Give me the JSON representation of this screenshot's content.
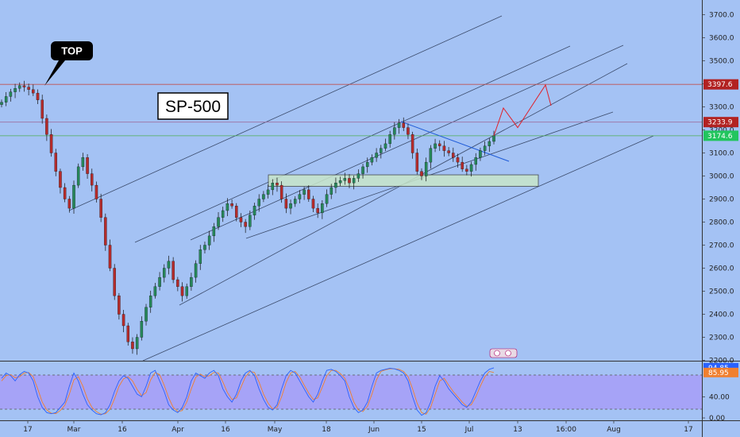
{
  "chart_data": {
    "type": "candlestick",
    "title": "SP-500",
    "annotation": "TOP",
    "ylim": [
      2150,
      3780
    ],
    "y_ticks": [
      2200,
      2300,
      2400,
      2500,
      2600,
      2700,
      2800,
      2900,
      3000,
      3100,
      3200,
      3300,
      3400,
      3500,
      3600,
      3700
    ],
    "y_tick_labels": [
      "2200.0",
      "2300.0",
      "2400.0",
      "2500.0",
      "2600.0",
      "2700.0",
      "2800.0",
      "2900.0",
      "3000.0",
      "3100.0",
      "3200.0",
      "3300.0",
      "3400.0",
      "3500.0",
      "3600.0",
      "3700.0"
    ],
    "x_tick_labels": [
      "17",
      "Mar",
      "16",
      "Apr",
      "16",
      "May",
      "18",
      "Jun",
      "15",
      "Jul",
      "13",
      "16:00",
      "Aug",
      "17"
    ],
    "price_tags": [
      {
        "value": 3397.6,
        "label": "3397.6",
        "color": "#b22222"
      },
      {
        "value": 3233.9,
        "label": "3233.9",
        "color": "#b22222"
      },
      {
        "value": 3174.6,
        "label": "3174.6",
        "color": "#22c55e"
      }
    ],
    "horizontal_lines": [
      {
        "value": 3397.6,
        "color": "#c0504d"
      },
      {
        "value": 3233.9,
        "color": "#9b6fa0"
      },
      {
        "value": 3174.6,
        "color": "#4caf50"
      }
    ],
    "support_zone": [
      2955,
      3005
    ],
    "close_path": [
      3320,
      3345,
      3365,
      3380,
      3392,
      3386,
      3375,
      3360,
      3330,
      3250,
      3180,
      3100,
      3020,
      2950,
      2900,
      2860,
      2960,
      3040,
      3080,
      3010,
      2960,
      2900,
      2820,
      2700,
      2600,
      2480,
      2400,
      2350,
      2280,
      2250,
      2300,
      2370,
      2430,
      2480,
      2520,
      2560,
      2600,
      2630,
      2550,
      2520,
      2480,
      2520,
      2560,
      2620,
      2680,
      2700,
      2740,
      2780,
      2820,
      2850,
      2880,
      2870,
      2820,
      2800,
      2780,
      2830,
      2870,
      2900,
      2920,
      2940,
      2970,
      2960,
      2900,
      2860,
      2880,
      2900,
      2920,
      2940,
      2900,
      2860,
      2840,
      2880,
      2920,
      2950,
      2970,
      2980,
      2990,
      2970,
      2990,
      3010,
      3040,
      3060,
      3080,
      3100,
      3120,
      3140,
      3180,
      3210,
      3230,
      3210,
      3180,
      3100,
      3020,
      3000,
      3060,
      3120,
      3140,
      3130,
      3110,
      3100,
      3080,
      3060,
      3030,
      3020,
      3050,
      3080,
      3110,
      3130,
      3150,
      3175
    ],
    "projection": [
      3175,
      3295,
      3210,
      3395,
      3305
    ],
    "oscillator": {
      "ylim": [
        0,
        100
      ],
      "y_tick_labels": [
        "0.00",
        "40.00",
        "85.95",
        "94.85"
      ],
      "upper": 80,
      "lower": 20,
      "last_values": [
        94.85,
        85.95
      ],
      "k": [
        75,
        85,
        80,
        70,
        82,
        88,
        85,
        70,
        40,
        20,
        10,
        8,
        10,
        20,
        30,
        60,
        85,
        70,
        45,
        25,
        15,
        8,
        6,
        10,
        25,
        50,
        70,
        80,
        75,
        60,
        45,
        40,
        60,
        85,
        90,
        70,
        50,
        25,
        15,
        10,
        20,
        40,
        70,
        85,
        80,
        75,
        85,
        90,
        80,
        55,
        40,
        30,
        45,
        70,
        85,
        90,
        80,
        55,
        35,
        20,
        15,
        25,
        55,
        80,
        90,
        85,
        70,
        55,
        40,
        30,
        45,
        70,
        90,
        92,
        88,
        80,
        70,
        40,
        20,
        10,
        15,
        30,
        60,
        85,
        90,
        92,
        94,
        93,
        90,
        85,
        70,
        40,
        15,
        5,
        10,
        30,
        60,
        80,
        70,
        55,
        45,
        35,
        25,
        20,
        30,
        50,
        70,
        85,
        92,
        94.85
      ],
      "d": [
        70,
        80,
        82,
        76,
        78,
        85,
        86,
        78,
        55,
        30,
        15,
        9,
        8,
        14,
        24,
        45,
        72,
        78,
        60,
        36,
        20,
        12,
        7,
        8,
        16,
        36,
        60,
        74,
        78,
        70,
        54,
        42,
        48,
        72,
        86,
        82,
        62,
        38,
        20,
        12,
        14,
        30,
        55,
        77,
        83,
        78,
        80,
        86,
        85,
        68,
        48,
        35,
        38,
        58,
        78,
        88,
        86,
        68,
        45,
        28,
        17,
        20,
        40,
        67,
        85,
        88,
        78,
        62,
        47,
        35,
        38,
        58,
        80,
        90,
        90,
        84,
        75,
        55,
        30,
        15,
        12,
        22,
        45,
        72,
        88,
        91,
        93,
        93,
        92,
        88,
        78,
        55,
        28,
        10,
        7,
        20,
        45,
        70,
        75,
        62,
        50,
        40,
        30,
        22,
        25,
        40,
        60,
        78,
        88,
        85.95
      ]
    }
  }
}
